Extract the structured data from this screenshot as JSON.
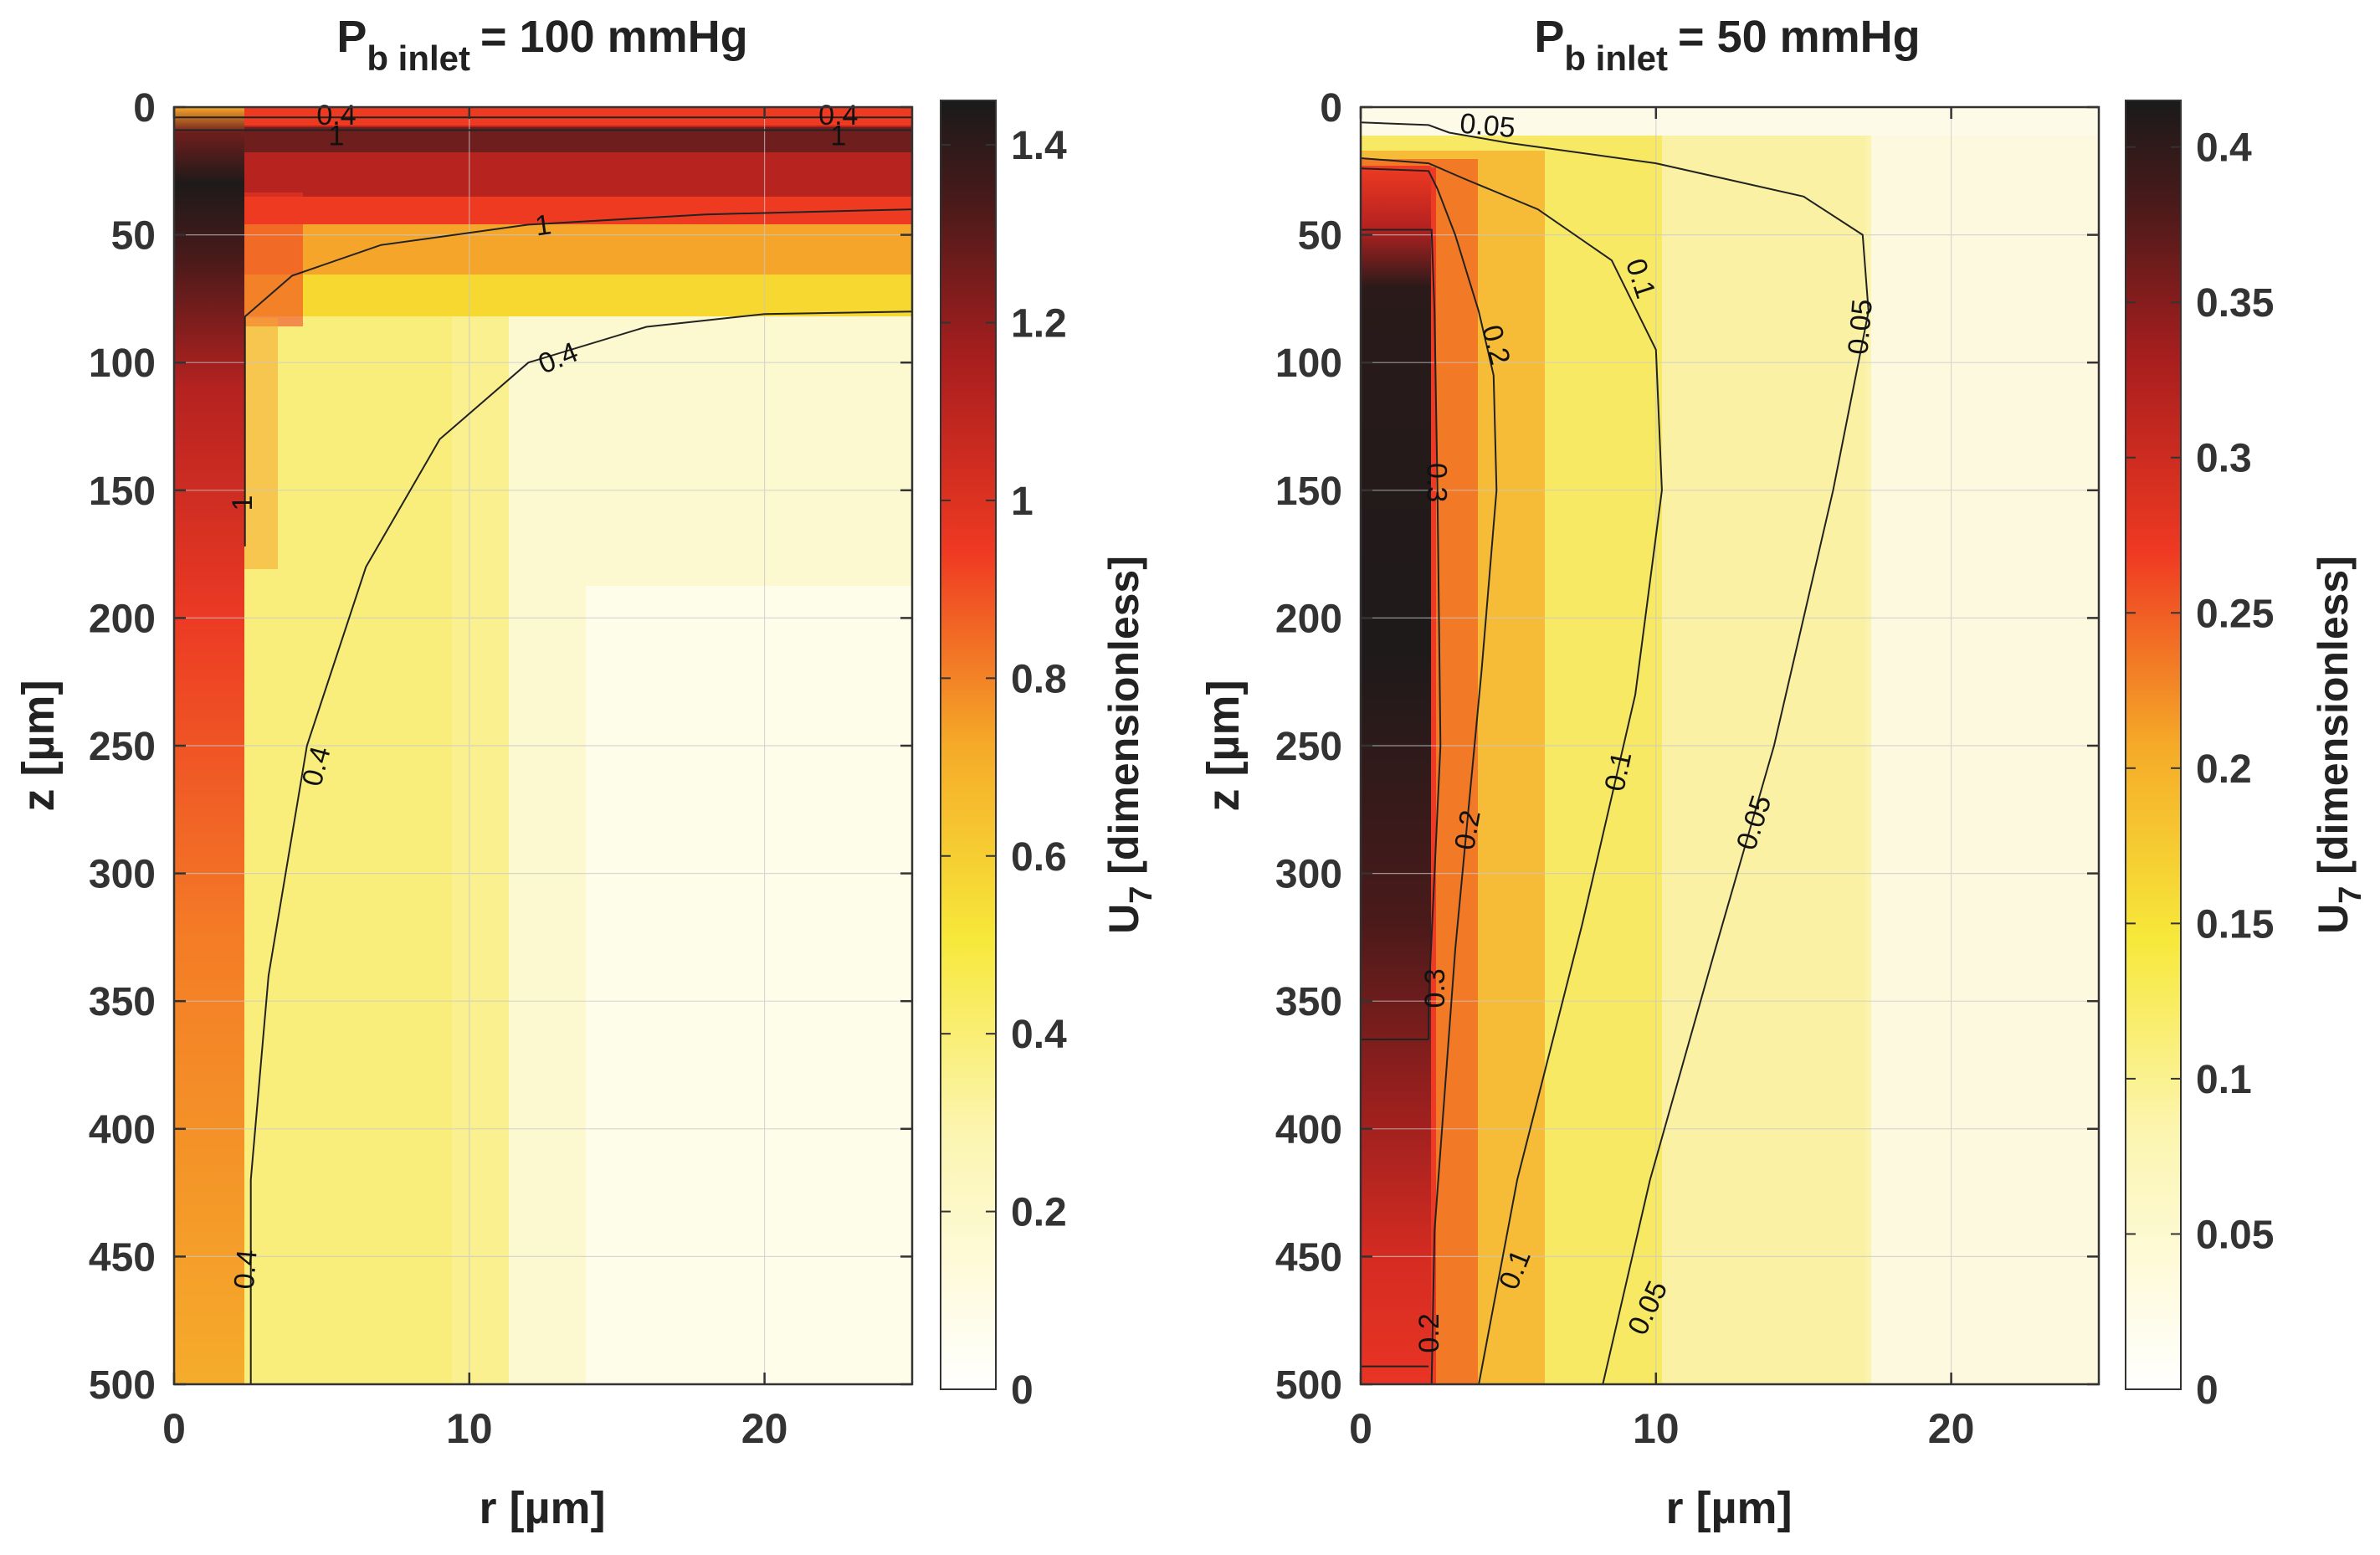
{
  "chart_data": [
    {
      "type": "heatmap",
      "title_main": "P",
      "title_sub": "b inlet",
      "title_rest": "= 100 mmHg",
      "xlabel": "r [µm]",
      "ylabel": "z [µm]",
      "xlim": [
        0,
        25
      ],
      "ylim": [
        0,
        500
      ],
      "xticks": [
        "0",
        "10",
        "20"
      ],
      "xtick_values": [
        0,
        10,
        20
      ],
      "yticks": [
        "0",
        "50",
        "100",
        "150",
        "200",
        "250",
        "300",
        "350",
        "400",
        "450",
        "500"
      ],
      "ytick_values": [
        0,
        50,
        100,
        150,
        200,
        250,
        300,
        350,
        400,
        450,
        500
      ],
      "colorbar_label_main": "U",
      "colorbar_label_sub": "7",
      "colorbar_label_rest": " [dimensionless]",
      "colorbar_range": [
        0,
        1.45
      ],
      "colorbar_ticks": [
        "0",
        "0.2",
        "0.4",
        "0.6",
        "0.8",
        "1",
        "1.2",
        "1.4"
      ],
      "colorbar_tick_values": [
        0,
        0.2,
        0.4,
        0.6,
        0.8,
        1.0,
        1.2,
        1.4
      ],
      "vessel_radius": 2.3,
      "contours": [
        {
          "level": 0.4,
          "points": [
            [
              2.6,
              500
            ],
            [
              2.6,
              420
            ],
            [
              3.2,
              340
            ],
            [
              4.5,
              250
            ],
            [
              6.5,
              180
            ],
            [
              9,
              130
            ],
            [
              12,
              100
            ],
            [
              16,
              86
            ],
            [
              20,
              81
            ],
            [
              25,
              80
            ]
          ]
        },
        {
          "level": 1,
          "points": [
            [
              2.4,
              172
            ],
            [
              2.4,
              82
            ],
            [
              4,
              66
            ],
            [
              7,
              54
            ],
            [
              12,
              46
            ],
            [
              18,
              42
            ],
            [
              25,
              40
            ]
          ]
        },
        {
          "level": 1,
          "points": [
            [
              0,
              9
            ],
            [
              25,
              9
            ]
          ]
        },
        {
          "level": 0.4,
          "points": [
            [
              0,
              4
            ],
            [
              25,
              4
            ]
          ]
        }
      ],
      "contour_labels": [
        {
          "text": "0.4",
          "at": [
            2.4,
            455
          ],
          "angle": -85
        },
        {
          "text": "0.4",
          "at": [
            4.8,
            258
          ],
          "angle": -75
        },
        {
          "text": "0.4",
          "at": [
            13,
            98
          ],
          "angle": -22
        },
        {
          "text": "1",
          "at": [
            12.5,
            46
          ],
          "angle": -8
        },
        {
          "text": "1",
          "at": [
            2.3,
            155
          ],
          "angle": -90
        },
        {
          "text": "1",
          "at": [
            5.5,
            11
          ],
          "angle": 0
        },
        {
          "text": "1",
          "at": [
            22.5,
            11
          ],
          "angle": 0
        },
        {
          "text": "0.4",
          "at": [
            5.5,
            3
          ],
          "angle": 0
        },
        {
          "text": "0.4",
          "at": [
            22.5,
            3
          ],
          "angle": 0
        }
      ]
    },
    {
      "type": "heatmap",
      "title_main": "P",
      "title_sub": "b inlet",
      "title_rest": "= 50 mmHg",
      "xlabel": "r [µm]",
      "ylabel": "z [µm]",
      "xlim": [
        0,
        25
      ],
      "ylim": [
        0,
        500
      ],
      "xticks": [
        "0",
        "10",
        "20"
      ],
      "xtick_values": [
        0,
        10,
        20
      ],
      "yticks": [
        "0",
        "50",
        "100",
        "150",
        "200",
        "250",
        "300",
        "350",
        "400",
        "450",
        "500"
      ],
      "ytick_values": [
        0,
        50,
        100,
        150,
        200,
        250,
        300,
        350,
        400,
        450,
        500
      ],
      "colorbar_label_main": "U",
      "colorbar_label_sub": "7",
      "colorbar_label_rest": " [dimensionless]",
      "colorbar_range": [
        0,
        0.415
      ],
      "colorbar_ticks": [
        "0",
        "0.05",
        "0.1",
        "0.15",
        "0.2",
        "0.25",
        "0.3",
        "0.35",
        "0.4"
      ],
      "colorbar_tick_values": [
        0,
        0.05,
        0.1,
        0.15,
        0.2,
        0.25,
        0.3,
        0.35,
        0.4
      ],
      "vessel_radius": 2.3,
      "contours": [
        {
          "level": 0.05,
          "points": [
            [
              8.2,
              500
            ],
            [
              9.8,
              420
            ],
            [
              12,
              330
            ],
            [
              14,
              250
            ],
            [
              16,
              150
            ],
            [
              17.2,
              80
            ],
            [
              17,
              50
            ],
            [
              15,
              35
            ],
            [
              10,
              22
            ],
            [
              5,
              14
            ],
            [
              3,
              10
            ],
            [
              2.3,
              7
            ],
            [
              0,
              6
            ]
          ]
        },
        {
          "level": 0.1,
          "points": [
            [
              4,
              500
            ],
            [
              5.3,
              420
            ],
            [
              7.5,
              320
            ],
            [
              9.3,
              230
            ],
            [
              10.2,
              150
            ],
            [
              10,
              95
            ],
            [
              8.5,
              60
            ],
            [
              6,
              40
            ],
            [
              3.5,
              28
            ],
            [
              2.3,
              22
            ],
            [
              0,
              20
            ]
          ]
        },
        {
          "level": 0.2,
          "points": [
            [
              2.4,
              500
            ],
            [
              2.5,
              440
            ],
            [
              3.2,
              330
            ],
            [
              4.1,
              220
            ],
            [
              4.6,
              150
            ],
            [
              4.5,
              105
            ],
            [
              4,
              80
            ],
            [
              3.2,
              50
            ],
            [
              2.6,
              32
            ],
            [
              2.3,
              25
            ],
            [
              0,
              24
            ]
          ]
        },
        {
          "level": 0.3,
          "points": [
            [
              2.3,
              365
            ],
            [
              2.3,
              350
            ],
            [
              2.7,
              250
            ],
            [
              2.6,
              150
            ],
            [
              2.5,
              80
            ],
            [
              2.4,
              48
            ],
            [
              0,
              48
            ]
          ]
        },
        {
          "level": 0.3,
          "points": [
            [
              0,
              365
            ],
            [
              2.3,
              365
            ]
          ]
        },
        {
          "level": 0.2,
          "points": [
            [
              0,
              493
            ],
            [
              2.3,
              493
            ]
          ]
        }
      ],
      "contour_labels": [
        {
          "text": "0.05",
          "at": [
            4.3,
            7
          ],
          "angle": 5
        },
        {
          "text": "0.1",
          "at": [
            9.5,
            67
          ],
          "angle": 72
        },
        {
          "text": "0.05",
          "at": [
            16.9,
            86
          ],
          "angle": -85
        },
        {
          "text": "0.2",
          "at": [
            4.6,
            93
          ],
          "angle": 75
        },
        {
          "text": "0.3",
          "at": [
            2.6,
            147
          ],
          "angle": 90
        },
        {
          "text": "0.2",
          "at": [
            3.6,
            283
          ],
          "angle": -80
        },
        {
          "text": "0.1",
          "at": [
            8.7,
            260
          ],
          "angle": -78
        },
        {
          "text": "0.05",
          "at": [
            13.3,
            280
          ],
          "angle": -72
        },
        {
          "text": "0.3",
          "at": [
            2.5,
            345
          ],
          "angle": -90
        },
        {
          "text": "0.1",
          "at": [
            5.2,
            455
          ],
          "angle": -68
        },
        {
          "text": "0.05",
          "at": [
            9.7,
            470
          ],
          "angle": -65
        },
        {
          "text": "0.2",
          "at": [
            2.3,
            480
          ],
          "angle": -90
        }
      ]
    }
  ]
}
